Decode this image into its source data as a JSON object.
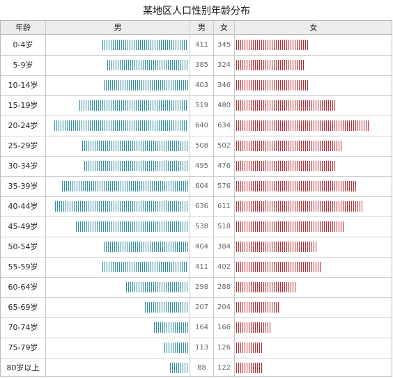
{
  "title": "某地区人口性别年龄分布",
  "header": {
    "age": "年龄",
    "male_bar": "男",
    "male_num": "男",
    "female_num": "女",
    "female_bar": "女"
  },
  "colors": {
    "male": "#2b8ca3",
    "female": "#c0262d"
  },
  "chart_data": {
    "type": "table",
    "title": "某地区人口性别年龄分布",
    "categories": [
      "0-4岁",
      "5-9岁",
      "10-14岁",
      "15-19岁",
      "20-24岁",
      "25-29岁",
      "30-34岁",
      "35-39岁",
      "40-44岁",
      "45-49岁",
      "50-54岁",
      "55-59岁",
      "60-64岁",
      "65-69岁",
      "70-74岁",
      "75-79岁",
      "80岁以上"
    ],
    "series": [
      {
        "name": "男",
        "values": [
          411,
          385,
          403,
          519,
          640,
          508,
          495,
          604,
          636,
          538,
          404,
          411,
          298,
          207,
          164,
          113,
          88
        ]
      },
      {
        "name": "女",
        "values": [
          345,
          324,
          346,
          480,
          634,
          502,
          476,
          576,
          611,
          518,
          384,
          402,
          288,
          204,
          166,
          126,
          122
        ]
      }
    ]
  }
}
